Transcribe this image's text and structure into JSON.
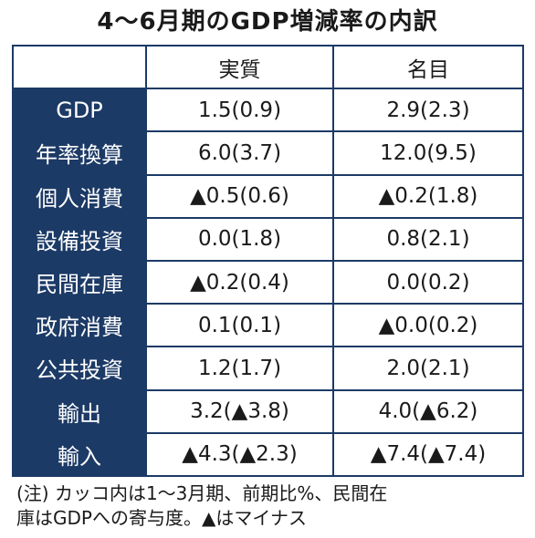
{
  "title": "4～6月期のGDP増減率の内訳",
  "table": {
    "headers": [
      "",
      "実質",
      "名目"
    ],
    "rows": [
      {
        "label": "GDP",
        "real": "1.5(0.9)",
        "nominal": "2.9(2.3)"
      },
      {
        "label": "年率換算",
        "real": "6.0(3.7)",
        "nominal": "12.0(9.5)"
      },
      {
        "label": "個人消費",
        "real": "▲0.5(0.6)",
        "nominal": "▲0.2(1.8)"
      },
      {
        "label": "設備投資",
        "real": "0.0(1.8)",
        "nominal": "0.8(2.1)"
      },
      {
        "label": "民間在庫",
        "real": "▲0.2(0.4)",
        "nominal": "0.0(0.2)"
      },
      {
        "label": "政府消費",
        "real": "0.1(0.1)",
        "nominal": "▲0.0(0.2)"
      },
      {
        "label": "公共投資",
        "real": "1.2(1.7)",
        "nominal": "2.0(2.1)"
      },
      {
        "label": "輸出",
        "real": "3.2(▲3.8)",
        "nominal": "4.0(▲6.2)"
      },
      {
        "label": "輸入",
        "real": "▲4.3(▲2.3)",
        "nominal": "▲7.4(▲7.4)"
      }
    ]
  },
  "note": {
    "line1": "(注) カッコ内は1～3月期、前期比%、民間在",
    "line2": "庫はGDPへの寄与度。▲はマイナス"
  },
  "colors": {
    "header_navy": "#1c3a66",
    "text": "#1a1a1a",
    "background": "#ffffff"
  }
}
